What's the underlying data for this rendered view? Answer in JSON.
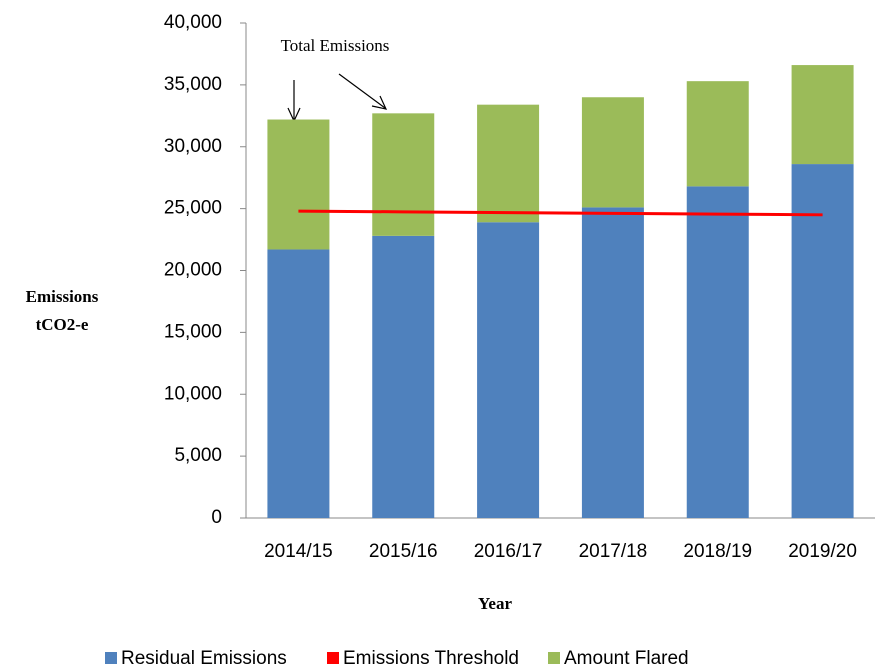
{
  "chart_data": {
    "type": "bar",
    "stacked": true,
    "y_label": [
      "Emissions",
      "tCO2-e"
    ],
    "x_label": "Year",
    "annotation": "Total Emissions",
    "categories": [
      "2014/15",
      "2015/16",
      "2016/17",
      "2017/18",
      "2018/19",
      "2019/20"
    ],
    "series": [
      {
        "name": "Residual Emissions",
        "color": "#4f81bd",
        "values": [
          21700,
          22800,
          23900,
          25100,
          26800,
          28600
        ]
      },
      {
        "name": "Emissions Threshold",
        "color": "#ff0000",
        "type": "line",
        "values": [
          24800,
          24740,
          24680,
          24620,
          24560,
          24500
        ]
      },
      {
        "name": "Amount Flared",
        "color": "#9bbb59",
        "values": [
          10500,
          9900,
          9500,
          8900,
          8500,
          8000
        ]
      }
    ],
    "ylim": [
      0,
      40000
    ],
    "yticks": [
      0,
      {
        "value": 5000,
        "label": "5,000"
      },
      {
        "value": 10000,
        "label": "10,000"
      },
      {
        "value": 15000,
        "label": "15,000"
      },
      {
        "value": 20000,
        "label": "20,000"
      },
      {
        "value": 25000,
        "label": "25,000"
      },
      {
        "value": 30000,
        "label": "30,000"
      },
      {
        "value": 35000,
        "label": "35,000"
      },
      {
        "value": 40000,
        "label": "40,000"
      }
    ],
    "legend": "bottom"
  }
}
